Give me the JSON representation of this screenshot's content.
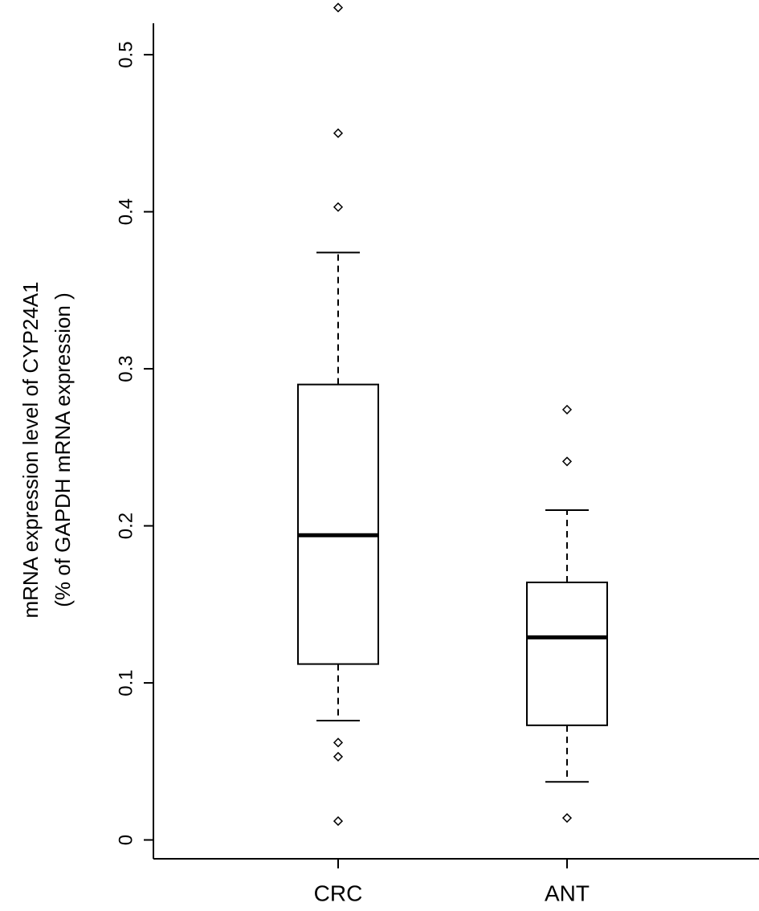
{
  "chart_data": {
    "type": "box",
    "y_label": [
      "mRNA expression level of  CYP24A1",
      "(% of GAPDH mRNA expression )"
    ],
    "categories": [
      "CRC",
      "ANT"
    ],
    "boxes": [
      {
        "whisker_low": 0.076,
        "q1": 0.112,
        "median": 0.194,
        "q3": 0.29,
        "whisker_high": 0.374,
        "outliers": [
          0.53,
          0.45,
          0.403,
          0.062,
          0.053,
          0.012
        ]
      },
      {
        "whisker_low": 0.037,
        "q1": 0.073,
        "median": 0.129,
        "q3": 0.164,
        "whisker_high": 0.21,
        "outliers": [
          0.274,
          0.241,
          0.014
        ]
      }
    ],
    "ylim": [
      -0.012,
      0.52
    ],
    "yticks": [
      0,
      0.1,
      0.2,
      0.3,
      0.4,
      0.5
    ]
  }
}
